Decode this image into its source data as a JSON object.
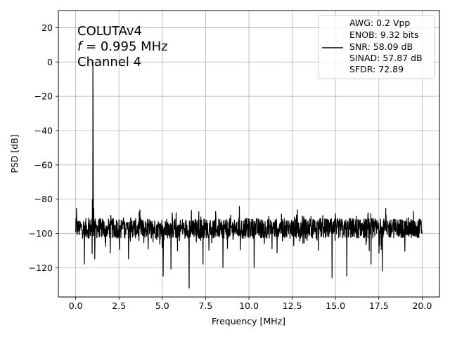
{
  "chart_data": {
    "type": "line",
    "xlabel": "Frequency [MHz]",
    "ylabel": "PSD [dB]",
    "xlim": [
      -1.0,
      21.0
    ],
    "ylim": [
      -137,
      30
    ],
    "xticks": [
      0.0,
      2.5,
      5.0,
      7.5,
      10.0,
      12.5,
      15.0,
      17.5,
      20.0
    ],
    "xtick_labels": [
      "0.0",
      "2.5",
      "5.0",
      "7.5",
      "10.0",
      "12.5",
      "15.0",
      "17.5",
      "20.0"
    ],
    "yticks": [
      -120,
      -100,
      -80,
      -60,
      -40,
      -20,
      0,
      20
    ],
    "ytick_labels": [
      "−120",
      "−100",
      "−80",
      "−60",
      "−40",
      "−20",
      "0",
      "20"
    ],
    "grid": true,
    "annotation": {
      "line1": "COLUTAv4",
      "line2_italic": "f",
      "line2_rest": " = 0.995 MHz",
      "line3": "Channel 4"
    },
    "legend": {
      "placement": "top-right",
      "entries": [
        "AWG: 0.2 Vpp",
        "ENOB: 9.32 bits",
        "SNR: 58.09 dB",
        "SINAD: 57.87 dB",
        "SFDR: 72.89"
      ],
      "line_color": "#000000"
    },
    "series": [
      {
        "color": "#000000",
        "noise_floor_db": -97,
        "noise_floor_range_db": [
          -115,
          -86
        ],
        "fundamental": {
          "x": 0.995,
          "y": 0.0
        },
        "spur": {
          "x": 0.995,
          "y": -74.5
        },
        "dips": [
          {
            "x": 0.5,
            "y": -118
          },
          {
            "x": 0.95,
            "y": -112
          },
          {
            "x": 1.1,
            "y": -115
          },
          {
            "x": 3.05,
            "y": -115
          },
          {
            "x": 5.05,
            "y": -125
          },
          {
            "x": 5.5,
            "y": -121
          },
          {
            "x": 6.55,
            "y": -132
          },
          {
            "x": 7.35,
            "y": -118
          },
          {
            "x": 8.5,
            "y": -120
          },
          {
            "x": 10.3,
            "y": -120
          },
          {
            "x": 14.8,
            "y": -126
          },
          {
            "x": 15.65,
            "y": -125
          },
          {
            "x": 17.05,
            "y": -118
          },
          {
            "x": 17.7,
            "y": -122
          }
        ],
        "peaks": [
          {
            "x": 0.05,
            "y": -85
          },
          {
            "x": 9.45,
            "y": -84
          },
          {
            "x": 17.9,
            "y": -85
          },
          {
            "x": 12.8,
            "y": -86
          },
          {
            "x": 19.5,
            "y": -87
          }
        ]
      }
    ]
  }
}
